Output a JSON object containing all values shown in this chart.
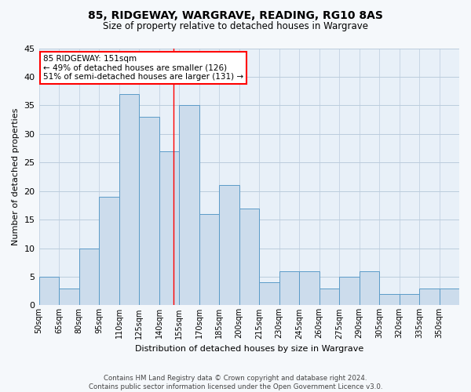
{
  "title": "85, RIDGEWAY, WARGRAVE, READING, RG10 8AS",
  "subtitle": "Size of property relative to detached houses in Wargrave",
  "xlabel": "Distribution of detached houses by size in Wargrave",
  "ylabel": "Number of detached properties",
  "bar_values": [
    5,
    3,
    10,
    19,
    37,
    33,
    27,
    35,
    16,
    21,
    17,
    4,
    6,
    6,
    3,
    5,
    6,
    2,
    2,
    3,
    3
  ],
  "bin_labels": [
    "50sqm",
    "65sqm",
    "80sqm",
    "95sqm",
    "110sqm",
    "125sqm",
    "140sqm",
    "155sqm",
    "170sqm",
    "185sqm",
    "200sqm",
    "215sqm",
    "230sqm",
    "245sqm",
    "260sqm",
    "275sqm",
    "290sqm",
    "305sqm",
    "320sqm",
    "335sqm",
    "350sqm"
  ],
  "bin_edges": [
    50,
    65,
    80,
    95,
    110,
    125,
    140,
    155,
    170,
    185,
    200,
    215,
    230,
    245,
    260,
    275,
    290,
    305,
    320,
    335,
    350,
    365
  ],
  "bar_color": "#ccdcec",
  "bar_edge_color": "#5b9bc8",
  "grid_color": "#bbccdd",
  "vline_x": 151,
  "vline_color": "red",
  "annotation_text": "85 RIDGEWAY: 151sqm\n← 49% of detached houses are smaller (126)\n51% of semi-detached houses are larger (131) →",
  "annotation_box_color": "white",
  "annotation_box_edge": "red",
  "ylim": [
    0,
    45
  ],
  "yticks": [
    0,
    5,
    10,
    15,
    20,
    25,
    30,
    35,
    40,
    45
  ],
  "footer_text": "Contains HM Land Registry data © Crown copyright and database right 2024.\nContains public sector information licensed under the Open Government Licence v3.0.",
  "bg_color": "#f5f8fb",
  "plot_bg_color": "#e8f0f8"
}
